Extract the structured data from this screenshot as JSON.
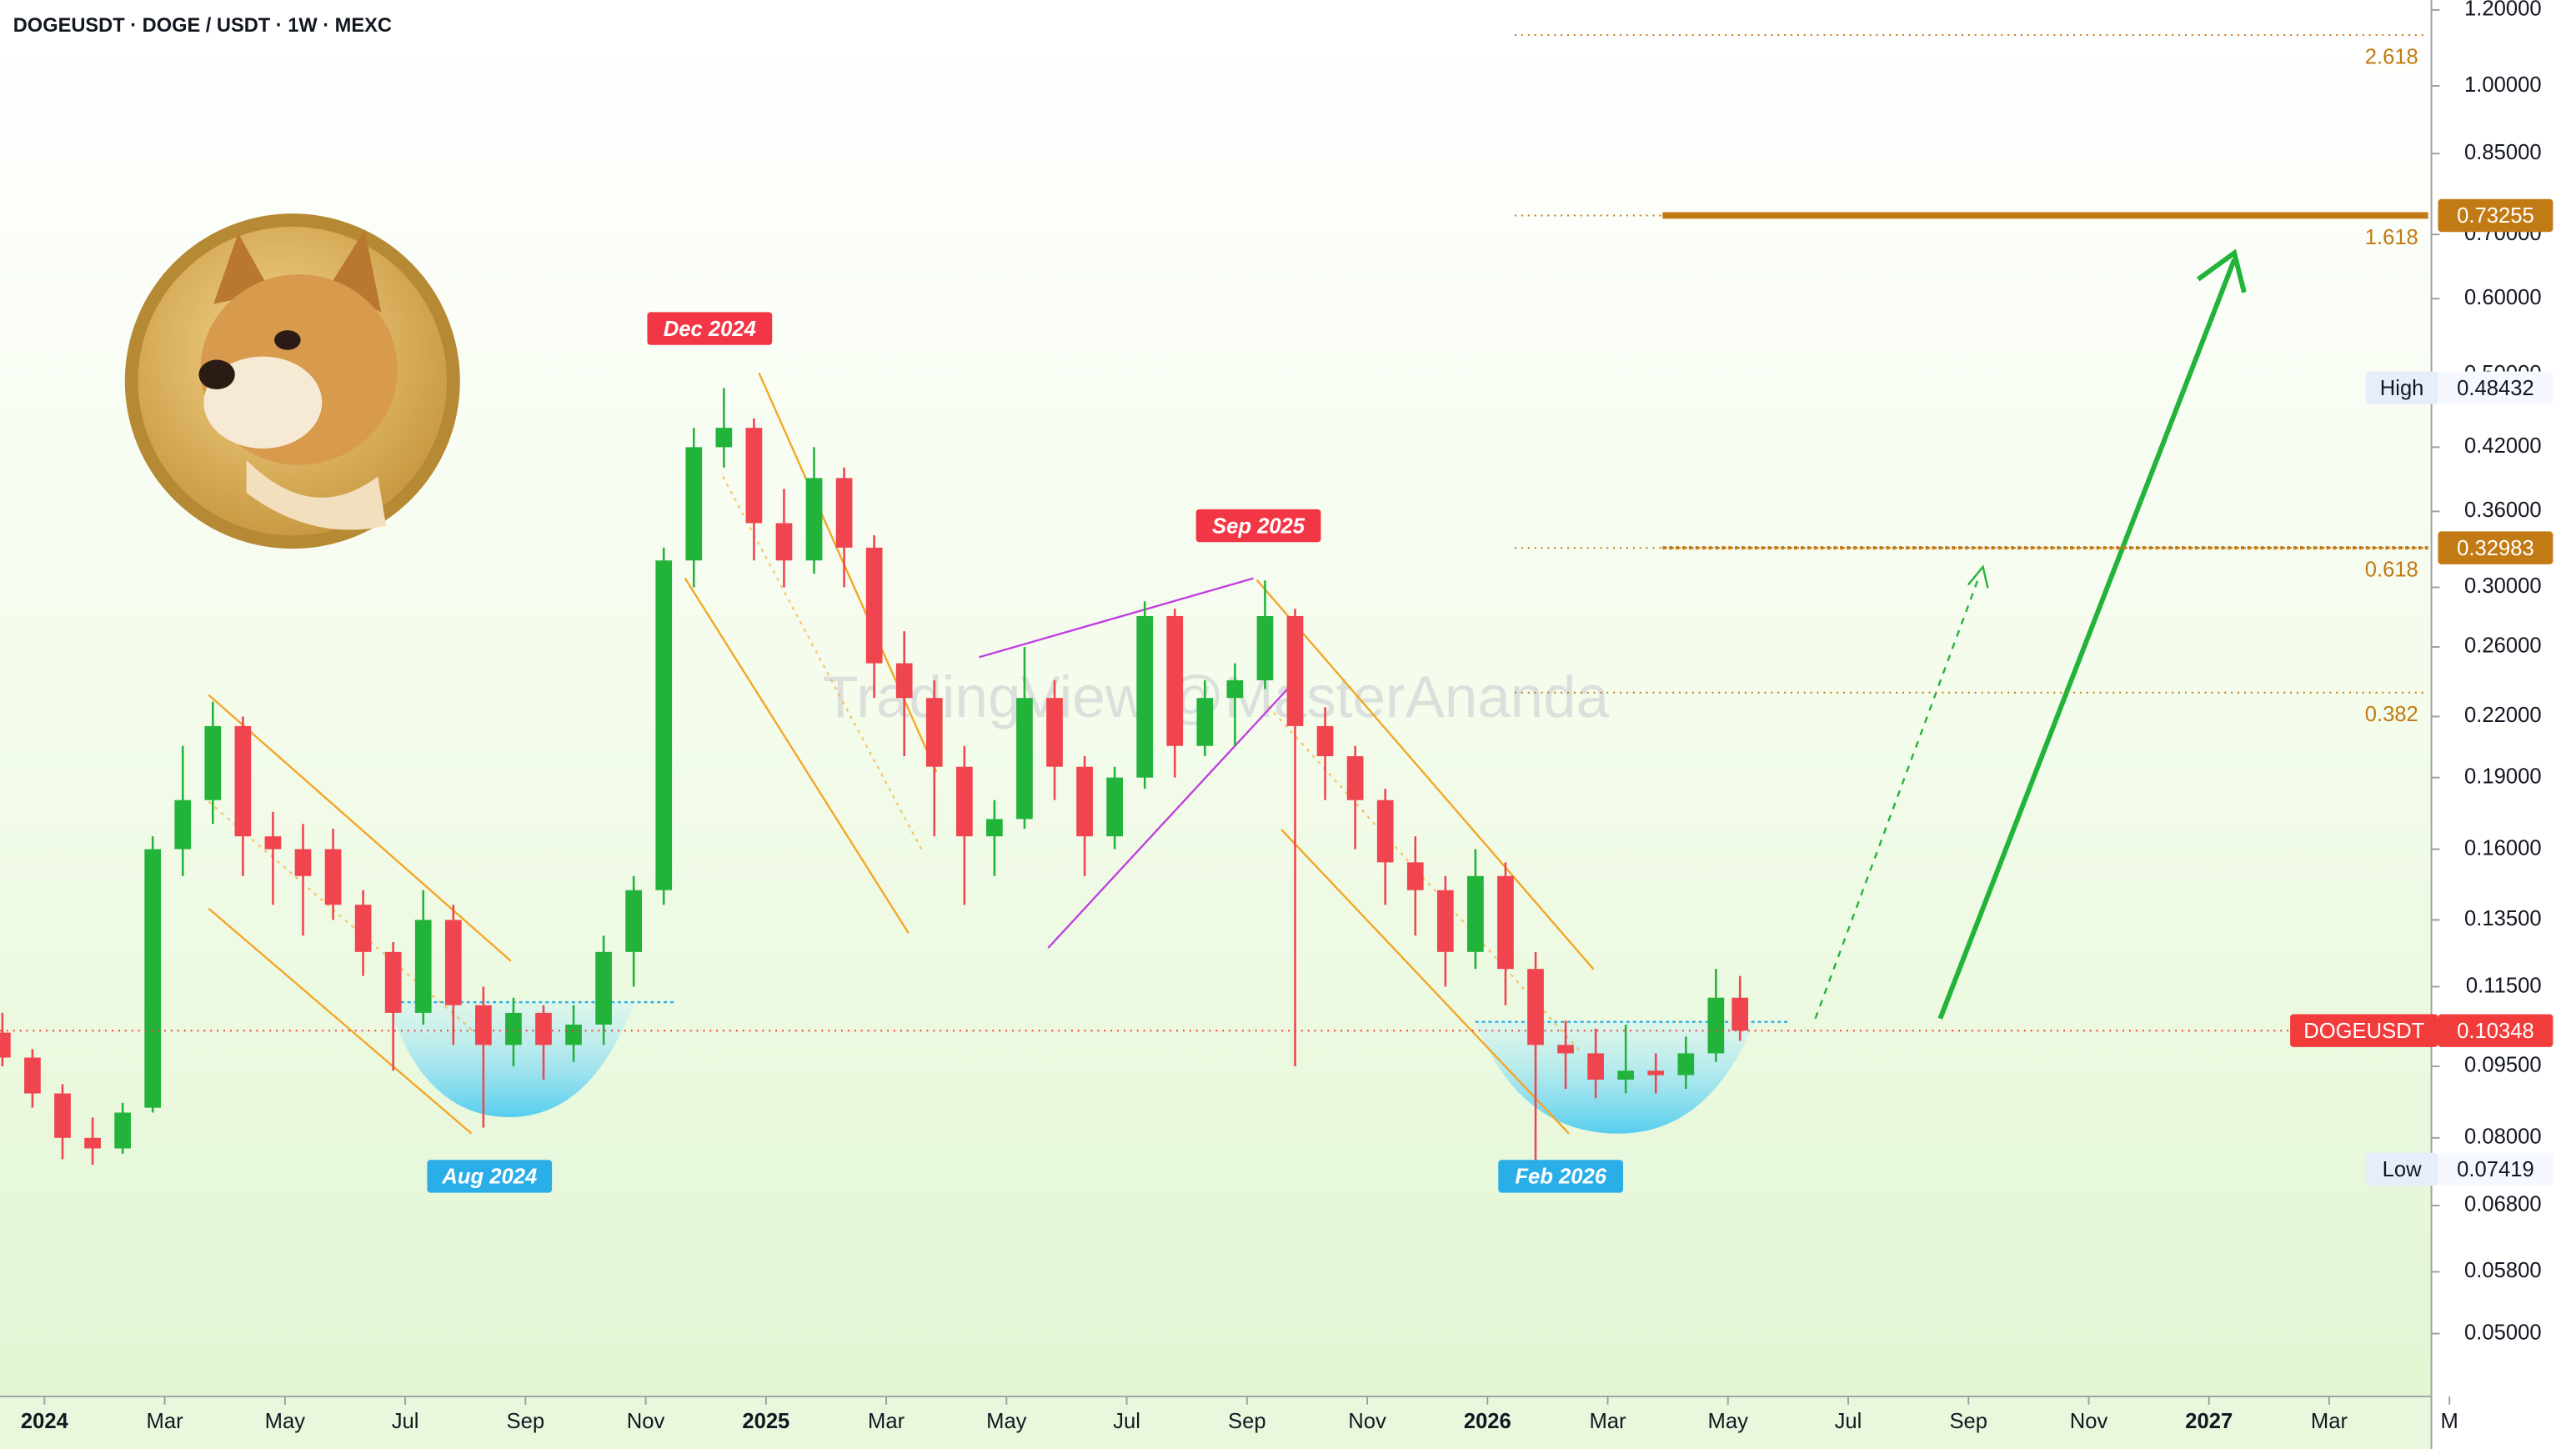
{
  "chart_data": {
    "type": "candlestick",
    "title": "DOGEUSDT · DOGE / USDT · 1W · MEXC",
    "watermark": "TradingView @MasterAnanda",
    "log_scale": true,
    "up_color": "#22b33a",
    "down_color": "#f0444f",
    "ylim": [
      0.043,
      1.229
    ],
    "yticks": [
      {
        "value": 1.2,
        "label": "1.20000"
      },
      {
        "value": 1.0,
        "label": "1.00000"
      },
      {
        "value": 0.85,
        "label": "0.85000"
      },
      {
        "value": 0.7,
        "label": "0.70000"
      },
      {
        "value": 0.6,
        "label": "0.60000"
      },
      {
        "value": 0.5,
        "label": "0.50000"
      },
      {
        "value": 0.42,
        "label": "0.42000"
      },
      {
        "value": 0.36,
        "label": "0.36000"
      },
      {
        "value": 0.3,
        "label": "0.30000"
      },
      {
        "value": 0.26,
        "label": "0.26000"
      },
      {
        "value": 0.22,
        "label": "0.22000"
      },
      {
        "value": 0.19,
        "label": "0.19000"
      },
      {
        "value": 0.16,
        "label": "0.16000"
      },
      {
        "value": 0.135,
        "label": "0.13500"
      },
      {
        "value": 0.115,
        "label": "0.11500"
      },
      {
        "value": 0.095,
        "label": "0.09500"
      },
      {
        "value": 0.08,
        "label": "0.08000"
      },
      {
        "value": 0.068,
        "label": "0.06800"
      },
      {
        "value": 0.058,
        "label": "0.05800"
      },
      {
        "value": 0.05,
        "label": "0.05000"
      }
    ],
    "xlim": [
      -0.74,
      39.7
    ],
    "xticks": [
      {
        "value": 0,
        "label": "2024"
      },
      {
        "value": 2,
        "label": "Mar"
      },
      {
        "value": 4,
        "label": "May"
      },
      {
        "value": 6,
        "label": "Jul"
      },
      {
        "value": 8,
        "label": "Sep"
      },
      {
        "value": 10,
        "label": "Nov"
      },
      {
        "value": 12,
        "label": "2025"
      },
      {
        "value": 14,
        "label": "Mar"
      },
      {
        "value": 16,
        "label": "May"
      },
      {
        "value": 18,
        "label": "Jul"
      },
      {
        "value": 20,
        "label": "Sep"
      },
      {
        "value": 22,
        "label": "Nov"
      },
      {
        "value": 24,
        "label": "2026"
      },
      {
        "value": 26,
        "label": "Mar"
      },
      {
        "value": 28,
        "label": "May"
      },
      {
        "value": 30,
        "label": "Jul"
      },
      {
        "value": 32,
        "label": "Sep"
      },
      {
        "value": 34,
        "label": "Nov"
      },
      {
        "value": 36,
        "label": "2027"
      },
      {
        "value": 38,
        "label": "Mar"
      },
      {
        "value": 40,
        "label": "M"
      }
    ],
    "x": [
      -0.7,
      -0.2,
      0.3,
      0.8,
      1.3,
      1.8,
      2.3,
      2.8,
      3.3,
      3.8,
      4.3,
      4.8,
      5.3,
      5.8,
      6.3,
      6.8,
      7.3,
      7.8,
      8.3,
      8.8,
      9.3,
      9.8,
      10.3,
      10.8,
      11.3,
      11.8,
      12.3,
      12.8,
      13.3,
      13.8,
      14.3,
      14.8,
      15.3,
      15.8,
      16.3,
      16.8,
      17.3,
      17.8,
      18.3,
      18.8,
      19.3,
      19.8,
      20.3,
      20.8,
      21.3,
      21.8,
      22.3,
      22.8,
      23.3,
      23.8,
      24.3,
      24.8,
      25.3,
      25.8,
      26.3,
      26.8,
      27.3,
      27.8,
      28.2
    ],
    "open": [
      0.103,
      0.097,
      0.089,
      0.08,
      0.078,
      0.086,
      0.16,
      0.18,
      0.215,
      0.165,
      0.16,
      0.16,
      0.14,
      0.125,
      0.108,
      0.135,
      0.11,
      0.1,
      0.108,
      0.1,
      0.105,
      0.125,
      0.145,
      0.32,
      0.42,
      0.44,
      0.35,
      0.32,
      0.39,
      0.33,
      0.25,
      0.23,
      0.195,
      0.165,
      0.172,
      0.23,
      0.195,
      0.165,
      0.19,
      0.28,
      0.205,
      0.23,
      0.24,
      0.28,
      0.215,
      0.2,
      0.18,
      0.155,
      0.145,
      0.125,
      0.15,
      0.12,
      0.1,
      0.098,
      0.092,
      0.094,
      0.093,
      0.098,
      0.112
    ],
    "high": [
      0.108,
      0.099,
      0.091,
      0.084,
      0.087,
      0.165,
      0.205,
      0.228,
      0.22,
      0.175,
      0.17,
      0.168,
      0.145,
      0.128,
      0.145,
      0.14,
      0.115,
      0.112,
      0.11,
      0.11,
      0.13,
      0.15,
      0.33,
      0.44,
      0.484,
      0.45,
      0.38,
      0.42,
      0.4,
      0.34,
      0.27,
      0.24,
      0.205,
      0.18,
      0.26,
      0.24,
      0.2,
      0.195,
      0.29,
      0.285,
      0.24,
      0.25,
      0.305,
      0.285,
      0.225,
      0.205,
      0.185,
      0.165,
      0.15,
      0.16,
      0.155,
      0.125,
      0.106,
      0.104,
      0.105,
      0.098,
      0.102,
      0.12,
      0.118
    ],
    "low": [
      0.095,
      0.086,
      0.076,
      0.075,
      0.077,
      0.085,
      0.15,
      0.17,
      0.15,
      0.14,
      0.13,
      0.135,
      0.118,
      0.094,
      0.105,
      0.1,
      0.082,
      0.095,
      0.092,
      0.096,
      0.1,
      0.115,
      0.14,
      0.3,
      0.4,
      0.32,
      0.3,
      0.31,
      0.3,
      0.23,
      0.2,
      0.165,
      0.14,
      0.15,
      0.168,
      0.18,
      0.15,
      0.16,
      0.185,
      0.19,
      0.2,
      0.205,
      0.235,
      0.095,
      0.18,
      0.16,
      0.14,
      0.13,
      0.115,
      0.12,
      0.11,
      0.074,
      0.09,
      0.088,
      0.089,
      0.089,
      0.09,
      0.096,
      0.101
    ],
    "close": [
      0.097,
      0.089,
      0.08,
      0.078,
      0.085,
      0.16,
      0.18,
      0.215,
      0.165,
      0.16,
      0.15,
      0.14,
      0.125,
      0.108,
      0.135,
      0.11,
      0.1,
      0.108,
      0.1,
      0.105,
      0.125,
      0.145,
      0.32,
      0.42,
      0.44,
      0.35,
      0.32,
      0.39,
      0.33,
      0.25,
      0.23,
      0.195,
      0.165,
      0.172,
      0.23,
      0.195,
      0.165,
      0.19,
      0.28,
      0.205,
      0.23,
      0.24,
      0.28,
      0.215,
      0.2,
      0.18,
      0.155,
      0.145,
      0.125,
      0.15,
      0.12,
      0.1,
      0.098,
      0.092,
      0.094,
      0.093,
      0.098,
      0.112,
      0.1035
    ],
    "fib_levels": [
      {
        "label": "2.618",
        "value": 1.13
      },
      {
        "label": "1.618",
        "value": 0.73255
      },
      {
        "label": "0.618",
        "value": 0.32983
      },
      {
        "label": "0.382",
        "value": 0.233
      }
    ],
    "price_tags": [
      {
        "value": 0.73255,
        "color": "#c27a14"
      },
      {
        "value": 0.32983,
        "color": "#c27a14"
      },
      {
        "label": "High",
        "value": 0.48432,
        "color": "#e6edfb"
      },
      {
        "label": "DOGEUSDT",
        "value": 0.10348,
        "color": "#f23c3c"
      },
      {
        "label": "Low",
        "value": 0.07419,
        "color": "#e6edfb"
      }
    ],
    "annotations": [
      {
        "label": "Dec 2024",
        "color": "#f23645"
      },
      {
        "label": "Sep 2025",
        "color": "#f23645"
      },
      {
        "label": "Aug 2024",
        "color": "#2aaee8"
      },
      {
        "label": "Feb 2026",
        "color": "#2aaee8"
      }
    ]
  }
}
